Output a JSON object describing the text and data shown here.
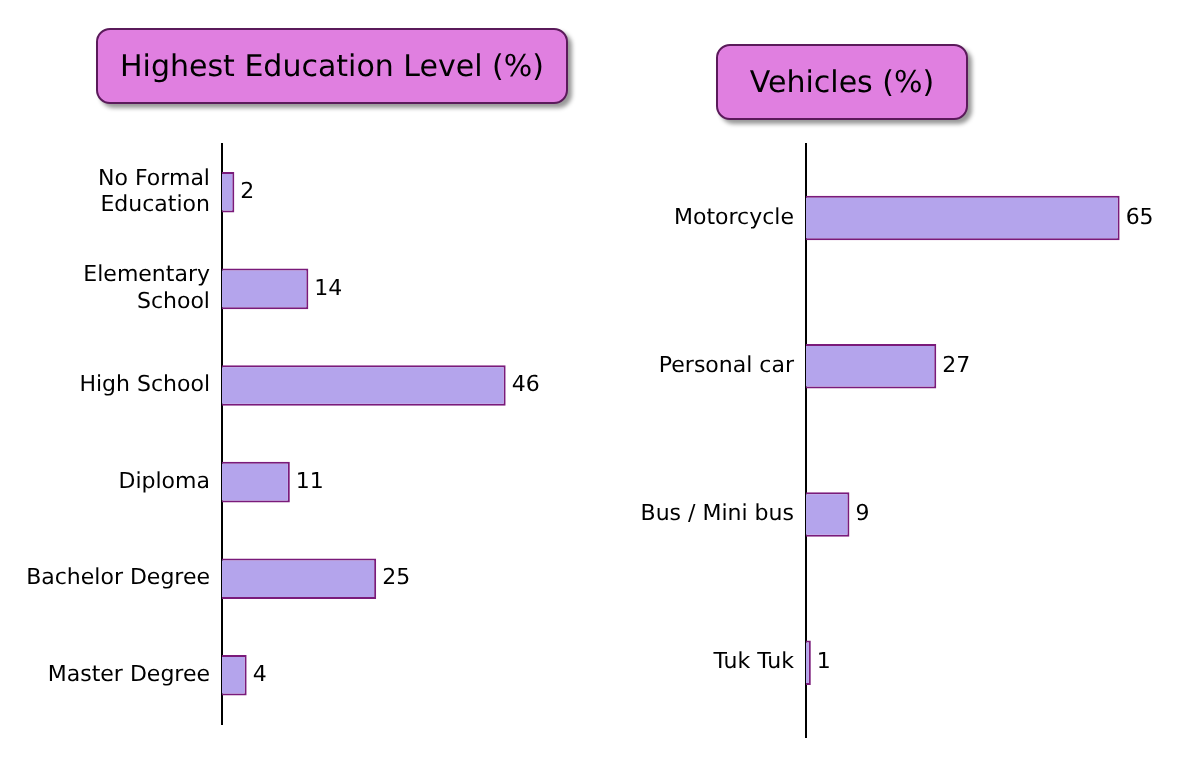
{
  "chart_data": [
    {
      "type": "bar",
      "orientation": "horizontal",
      "title": "Highest Education Level (%)",
      "categories": [
        "No Formal Education",
        "Elementary School",
        "High School",
        "Diploma",
        "Bachelor Degree",
        "Master Degree"
      ],
      "values": [
        2,
        14,
        46,
        11,
        25,
        4
      ],
      "color": "#b4a4ec",
      "data_labels": true,
      "legend": false
    },
    {
      "type": "bar",
      "orientation": "horizontal",
      "title": "Vehicles (%)",
      "categories": [
        "Motorcycle",
        "Personal car",
        "Bus / Mini bus",
        "Tuk Tuk"
      ],
      "values": [
        65,
        27,
        9,
        1
      ],
      "color": "#b4a4ec",
      "data_labels": true,
      "legend": false
    }
  ]
}
